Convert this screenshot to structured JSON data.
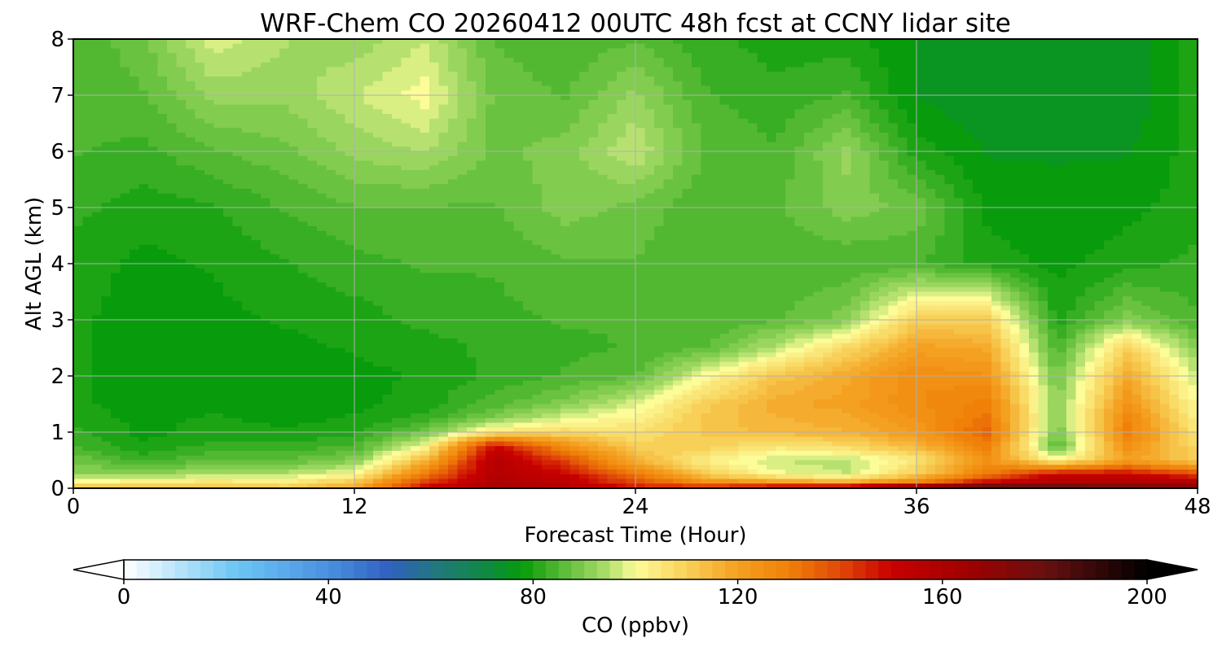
{
  "chart_data": {
    "type": "heatmap",
    "title": "WRF-Chem CO  20260412 00UTC 48h fcst at CCNY lidar site",
    "xlabel": "Forecast Time (Hour)",
    "ylabel": "Alt AGL (km)",
    "xlim": [
      0,
      48
    ],
    "ylim": [
      0,
      8
    ],
    "x_ticks": [
      0,
      12,
      24,
      36,
      48
    ],
    "y_ticks": [
      0,
      1,
      2,
      3,
      4,
      5,
      6,
      7,
      8
    ],
    "grid": true,
    "x_hours": [
      0,
      3,
      6,
      9,
      12,
      15,
      18,
      21,
      24,
      27,
      30,
      33,
      36,
      39,
      42,
      45,
      48
    ],
    "y_km": [
      0,
      0.1,
      0.25,
      0.5,
      0.75,
      1,
      1.25,
      1.5,
      2,
      2.5,
      3,
      4,
      5,
      6,
      7,
      8
    ],
    "values": [
      [
        118,
        112,
        114,
        112,
        120,
        150,
        165,
        160,
        148,
        150,
        160,
        165,
        185,
        195,
        190,
        185,
        175
      ],
      [
        100,
        105,
        106,
        104,
        112,
        142,
        160,
        155,
        140,
        126,
        122,
        118,
        130,
        150,
        160,
        160,
        160
      ],
      [
        92,
        90,
        95,
        95,
        100,
        130,
        158,
        150,
        130,
        110,
        100,
        96,
        110,
        130,
        150,
        150,
        140
      ],
      [
        88,
        83,
        86,
        86,
        90,
        115,
        158,
        140,
        116,
        103,
        96,
        95,
        105,
        125,
        100,
        120,
        110
      ],
      [
        84,
        79,
        82,
        82,
        84,
        100,
        150,
        125,
        110,
        110,
        105,
        108,
        115,
        130,
        85,
        125,
        108
      ],
      [
        82,
        78,
        80,
        79,
        80,
        88,
        105,
        108,
        106,
        112,
        115,
        116,
        122,
        135,
        88,
        130,
        104
      ],
      [
        80,
        78,
        79,
        78,
        79,
        82,
        90,
        98,
        102,
        112,
        116,
        118,
        124,
        132,
        90,
        128,
        102
      ],
      [
        79,
        78,
        78,
        78,
        78,
        80,
        85,
        90,
        98,
        110,
        118,
        120,
        126,
        130,
        90,
        124,
        100
      ],
      [
        79,
        78,
        78,
        78,
        78,
        79,
        82,
        84,
        86,
        100,
        112,
        118,
        126,
        124,
        88,
        118,
        96
      ],
      [
        79,
        78,
        78,
        78,
        79,
        80,
        82,
        83,
        84,
        86,
        95,
        108,
        120,
        118,
        84,
        110,
        90
      ],
      [
        79,
        78,
        78,
        79,
        80,
        82,
        83,
        84,
        84,
        84,
        86,
        90,
        110,
        110,
        80,
        90,
        84
      ],
      [
        80,
        78,
        79,
        81,
        83,
        84,
        84,
        86,
        86,
        84,
        84,
        84,
        84,
        80,
        78,
        80,
        82
      ],
      [
        82,
        80,
        81,
        84,
        86,
        86,
        86,
        90,
        88,
        84,
        86,
        90,
        88,
        78,
        77,
        78,
        80
      ],
      [
        84,
        83,
        86,
        88,
        92,
        94,
        88,
        90,
        96,
        86,
        84,
        92,
        80,
        76,
        76,
        76,
        80
      ],
      [
        84,
        86,
        92,
        92,
        96,
        100,
        88,
        86,
        92,
        84,
        82,
        84,
        76,
        74,
        76,
        74,
        80
      ],
      [
        84,
        88,
        98,
        94,
        92,
        96,
        86,
        84,
        86,
        82,
        80,
        80,
        76,
        74,
        76,
        74,
        80
      ]
    ],
    "colorbar": {
      "label": "CO  (ppbv)",
      "min": 0,
      "max": 200,
      "ticks": [
        0,
        40,
        80,
        120,
        160,
        200
      ],
      "extend": "both",
      "colors": [
        [
          0,
          "#ffffff"
        ],
        [
          22,
          "#6cc6f4"
        ],
        [
          40,
          "#4a90e0"
        ],
        [
          52,
          "#3060c0"
        ],
        [
          62,
          "#207a78"
        ],
        [
          72,
          "#0c8c3a"
        ],
        [
          78,
          "#089c08"
        ],
        [
          86,
          "#5cbc38"
        ],
        [
          94,
          "#a8dc68"
        ],
        [
          100,
          "#fcfc98"
        ],
        [
          110,
          "#f8d058"
        ],
        [
          120,
          "#f4a020"
        ],
        [
          130,
          "#f08008"
        ],
        [
          140,
          "#e04808"
        ],
        [
          150,
          "#c80000"
        ],
        [
          165,
          "#a00000"
        ],
        [
          180,
          "#681010"
        ],
        [
          200,
          "#000000"
        ]
      ]
    }
  }
}
